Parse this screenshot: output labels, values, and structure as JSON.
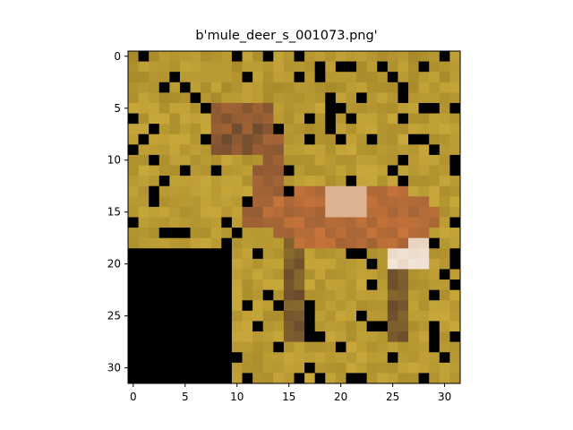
{
  "figure": {
    "title": "b'mule_deer_s_001073.png'"
  },
  "image": {
    "description_icon": "pixelated-deer-image",
    "grid_size": [
      32,
      32
    ],
    "x_ticks": [
      0,
      5,
      10,
      15,
      20,
      25,
      30
    ],
    "y_ticks": [
      0,
      5,
      10,
      15,
      20,
      25,
      30
    ],
    "x_range": [
      -0.5,
      31.5
    ],
    "y_range": [
      31.5,
      -0.5
    ],
    "palette": {
      "grass_light": "#c8a83a",
      "grass_mid": "#a88a2a",
      "grass_dark": "#5a4a1a",
      "green_dark": "#2a2e14",
      "deer_orange": "#c8743a",
      "deer_light": "#e6cdb8",
      "deer_dark": "#6a4a2e",
      "axis": "#000000"
    }
  }
}
